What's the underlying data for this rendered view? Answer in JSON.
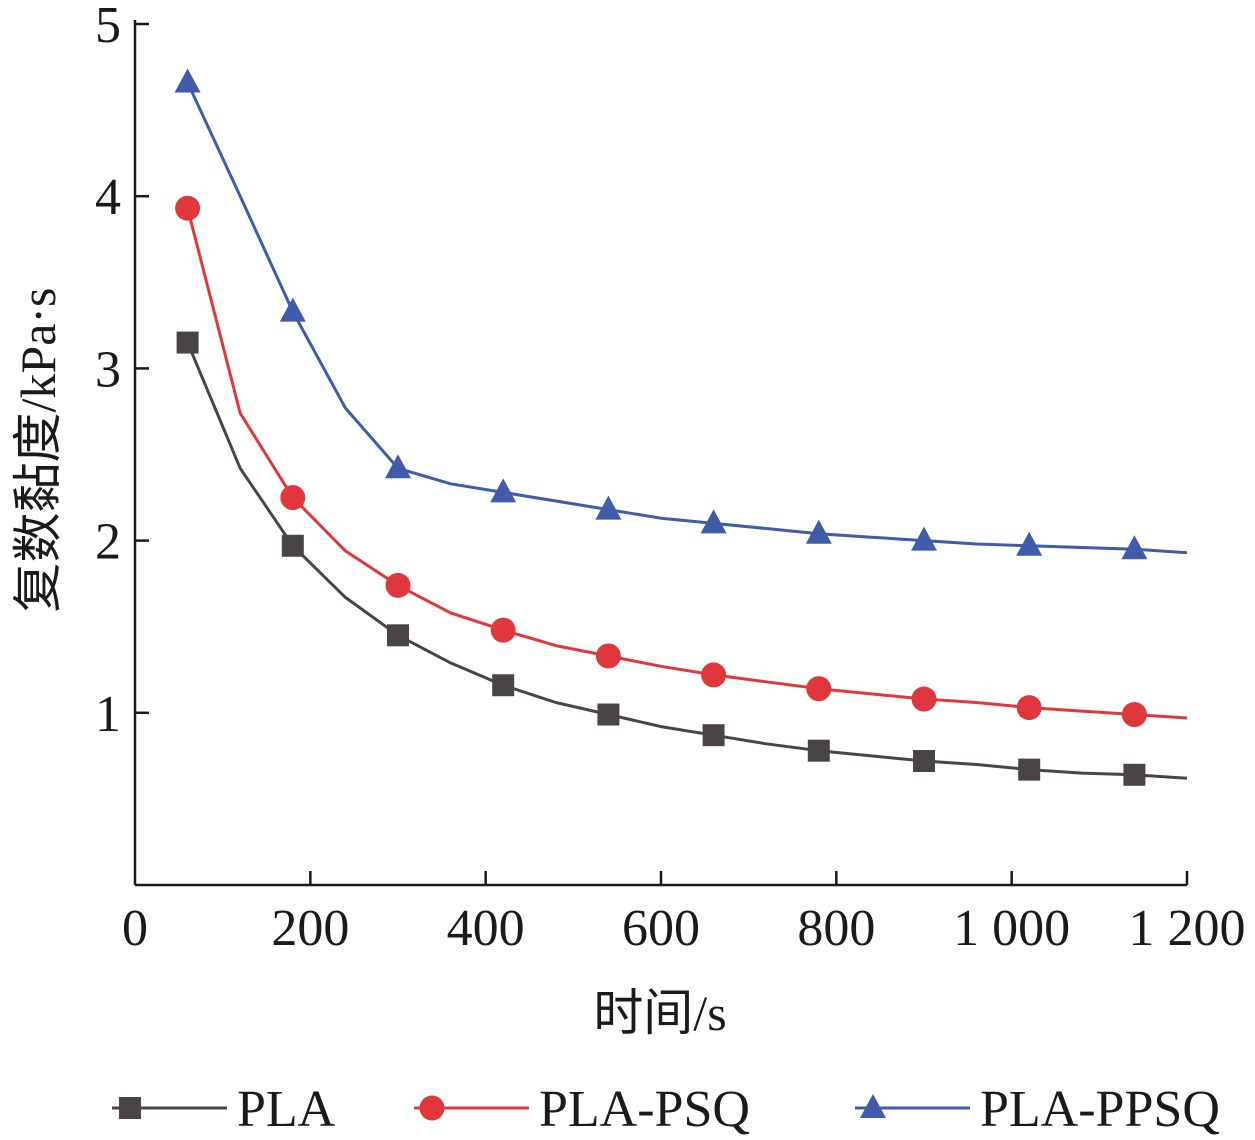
{
  "chart_data": {
    "type": "line",
    "xlabel": "时间/s",
    "ylabel": "复数黏度/kPa·s",
    "xlim": [
      0,
      1200
    ],
    "ylim": [
      0,
      5
    ],
    "x_ticks": [
      "0",
      "200",
      "400",
      "600",
      "800",
      "1 000",
      "1 200"
    ],
    "y_ticks": [
      "1",
      "2",
      "3",
      "4",
      "5"
    ],
    "grid": false,
    "legend_position": "bottom",
    "series": [
      {
        "name": "PLA",
        "color": "#4a4545",
        "marker": "square",
        "line_x": [
          60,
          120,
          180,
          240,
          300,
          360,
          420,
          480,
          540,
          600,
          660,
          720,
          780,
          840,
          900,
          960,
          1020,
          1080,
          1140,
          1200
        ],
        "line_y": [
          3.15,
          2.42,
          1.97,
          1.67,
          1.45,
          1.29,
          1.16,
          1.06,
          0.99,
          0.92,
          0.87,
          0.82,
          0.78,
          0.75,
          0.72,
          0.7,
          0.67,
          0.65,
          0.64,
          0.62
        ],
        "marker_x": [
          60,
          180,
          300,
          420,
          540,
          660,
          780,
          900,
          1020,
          1140
        ],
        "marker_y": [
          3.15,
          1.97,
          1.45,
          1.16,
          0.99,
          0.87,
          0.78,
          0.72,
          0.67,
          0.64
        ]
      },
      {
        "name": "PLA-PSQ",
        "color": "#e0373d",
        "marker": "circle",
        "line_x": [
          60,
          120,
          180,
          240,
          300,
          360,
          420,
          480,
          540,
          600,
          660,
          720,
          780,
          840,
          900,
          960,
          1020,
          1080,
          1140,
          1200
        ],
        "line_y": [
          3.93,
          2.74,
          2.25,
          1.94,
          1.74,
          1.58,
          1.48,
          1.39,
          1.33,
          1.27,
          1.22,
          1.18,
          1.14,
          1.11,
          1.08,
          1.06,
          1.03,
          1.01,
          0.99,
          0.97
        ],
        "marker_x": [
          60,
          180,
          300,
          420,
          540,
          660,
          780,
          900,
          1020,
          1140
        ],
        "marker_y": [
          3.93,
          2.25,
          1.74,
          1.48,
          1.33,
          1.22,
          1.14,
          1.08,
          1.03,
          0.99
        ]
      },
      {
        "name": "PLA-PPSQ",
        "color": "#3f5ba9",
        "marker": "triangle",
        "line_x": [
          60,
          120,
          180,
          240,
          300,
          360,
          420,
          480,
          540,
          600,
          660,
          720,
          780,
          840,
          900,
          960,
          1020,
          1080,
          1140,
          1200
        ],
        "line_y": [
          4.66,
          4.0,
          3.33,
          2.77,
          2.42,
          2.33,
          2.28,
          2.23,
          2.18,
          2.13,
          2.1,
          2.07,
          2.04,
          2.02,
          2.0,
          1.98,
          1.97,
          1.96,
          1.95,
          1.93
        ],
        "marker_x": [
          60,
          180,
          300,
          420,
          540,
          660,
          780,
          900,
          1020,
          1140
        ],
        "marker_y": [
          4.66,
          3.33,
          2.42,
          2.28,
          2.18,
          2.1,
          2.04,
          2.0,
          1.97,
          1.95
        ]
      }
    ]
  }
}
